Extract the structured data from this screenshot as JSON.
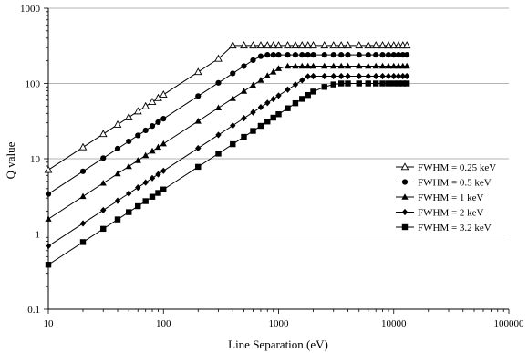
{
  "chart_data": {
    "type": "scatter",
    "x_scale": "log",
    "y_scale": "log",
    "xlim": [
      10,
      100000
    ],
    "ylim": [
      0.1,
      1000
    ],
    "xlabel": "Line Separation (eV)",
    "ylabel": "Q value",
    "grid": "horizontal major",
    "legend_position": "right",
    "x_ticks": [
      "10",
      "100",
      "1000",
      "10000",
      "100000"
    ],
    "y_ticks": [
      "0.1",
      "1",
      "10",
      "100",
      "1000"
    ],
    "series": [
      {
        "name": "FWHM = 0.25 keV",
        "marker": "triangle-open",
        "x_max_line": 13000,
        "x": [
          10,
          20,
          30,
          40,
          50,
          60,
          70,
          80,
          90,
          100,
          200,
          300,
          400,
          500,
          600,
          700,
          800,
          900,
          1000,
          1200,
          1400,
          1600,
          1800,
          2000,
          2500,
          3000,
          3500,
          4000,
          5000,
          6000,
          7000,
          8000,
          9000,
          10000,
          11000,
          12000,
          13000
        ],
        "y": [
          7.1,
          14.2,
          21.3,
          28.4,
          35.5,
          42.6,
          49.7,
          56.8,
          63.9,
          71,
          142,
          213,
          320,
          320,
          320,
          320,
          320,
          320,
          320,
          320,
          320,
          320,
          320,
          320,
          320,
          320,
          320,
          320,
          320,
          320,
          320,
          320,
          320,
          320,
          320,
          320,
          320
        ]
      },
      {
        "name": "FWHM = 0.5 keV",
        "marker": "circle",
        "x_max_line": 13000,
        "x": [
          10,
          20,
          30,
          40,
          50,
          60,
          70,
          80,
          90,
          100,
          200,
          300,
          400,
          500,
          600,
          700,
          800,
          900,
          1000,
          1200,
          1400,
          1600,
          1800,
          2000,
          2500,
          3000,
          3500,
          4000,
          5000,
          6000,
          7000,
          8000,
          9000,
          10000,
          11000,
          12000,
          13000
        ],
        "y": [
          3.4,
          6.8,
          10.2,
          13.6,
          17,
          20.4,
          23.8,
          27.2,
          30.6,
          34,
          68,
          102,
          136,
          170,
          204,
          230,
          240,
          240,
          240,
          240,
          240,
          240,
          240,
          240,
          240,
          240,
          240,
          240,
          240,
          240,
          240,
          240,
          240,
          240,
          240,
          240,
          240
        ]
      },
      {
        "name": "FWHM = 1 keV",
        "marker": "triangle",
        "x_max_line": 13000,
        "x": [
          10,
          20,
          30,
          40,
          50,
          60,
          70,
          80,
          90,
          100,
          200,
          300,
          400,
          500,
          600,
          700,
          800,
          900,
          1000,
          1200,
          1400,
          1600,
          1800,
          2000,
          2500,
          3000,
          3500,
          4000,
          5000,
          6000,
          7000,
          8000,
          9000,
          10000,
          11000,
          12000,
          13000
        ],
        "y": [
          1.58,
          3.16,
          4.74,
          6.32,
          7.9,
          9.48,
          11.06,
          12.64,
          14.22,
          15.8,
          31.6,
          47.4,
          63.2,
          79,
          94.8,
          110.6,
          126.4,
          142.2,
          158,
          170,
          170,
          170,
          170,
          170,
          170,
          170,
          170,
          170,
          170,
          170,
          170,
          170,
          170,
          170,
          170,
          170,
          170
        ]
      },
      {
        "name": "FWHM = 2 keV",
        "marker": "diamond",
        "x_max_line": 13000,
        "x": [
          10,
          20,
          30,
          40,
          50,
          60,
          70,
          80,
          90,
          100,
          200,
          300,
          400,
          500,
          600,
          700,
          800,
          900,
          1000,
          1200,
          1400,
          1600,
          1800,
          2000,
          2500,
          3000,
          3500,
          4000,
          5000,
          6000,
          7000,
          8000,
          9000,
          10000,
          11000,
          12000,
          13000
        ],
        "y": [
          0.69,
          1.38,
          2.07,
          2.76,
          3.45,
          4.14,
          4.83,
          5.52,
          6.21,
          6.9,
          13.8,
          20.7,
          27.6,
          34.5,
          41.4,
          48.3,
          55.2,
          62.1,
          69,
          82.8,
          96.6,
          110.4,
          124,
          125,
          125,
          125,
          125,
          125,
          125,
          125,
          125,
          125,
          125,
          125,
          125,
          125,
          125
        ]
      },
      {
        "name": "FWHM = 3.2 keV",
        "marker": "square",
        "x_max_line": 13000,
        "x": [
          10,
          20,
          30,
          40,
          50,
          60,
          70,
          80,
          90,
          100,
          200,
          300,
          400,
          500,
          600,
          700,
          800,
          900,
          1000,
          1200,
          1400,
          1600,
          1800,
          2000,
          2500,
          3000,
          3500,
          4000,
          5000,
          6000,
          7000,
          8000,
          9000,
          10000,
          11000,
          12000,
          13000
        ],
        "y": [
          0.39,
          0.78,
          1.17,
          1.56,
          1.95,
          2.34,
          2.73,
          3.12,
          3.51,
          3.9,
          7.8,
          11.7,
          15.6,
          19.5,
          23.4,
          27.3,
          31.2,
          35.1,
          39,
          46.8,
          54.6,
          62.4,
          70.2,
          78,
          90,
          97,
          100,
          100,
          100,
          100,
          100,
          100,
          100,
          100,
          100,
          100,
          100
        ]
      }
    ]
  }
}
